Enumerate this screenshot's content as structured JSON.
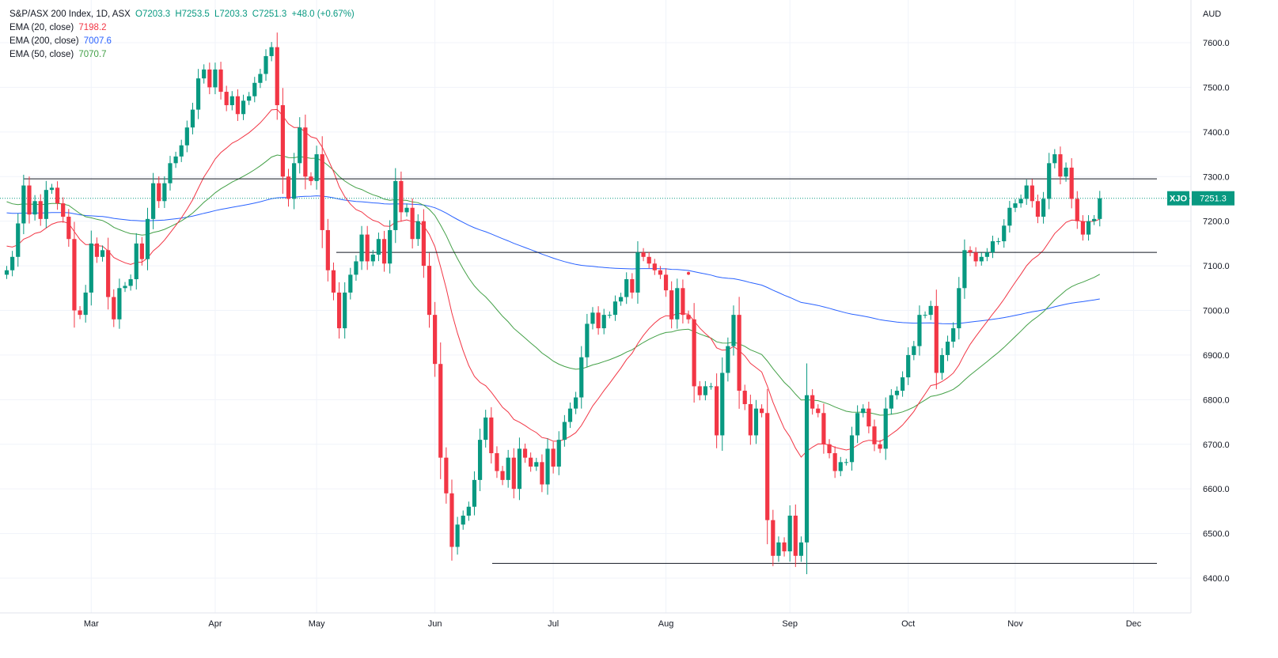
{
  "legend": {
    "symbol": "S&P/ASX 200 Index, 1D, ASX",
    "open": "O7203.3",
    "high": "H7253.5",
    "low": "L7203.3",
    "close": "C7251.3",
    "change": "+48.0 (+0.67%)",
    "ema20_label": "EMA (20, close)",
    "ema20_value": "7198.2",
    "ema200_label": "EMA (200, close)",
    "ema200_value": "7007.6",
    "ema50_label": "EMA (50, close)",
    "ema50_value": "7070.7"
  },
  "colors": {
    "up": "#089981",
    "down": "#f23645",
    "ema20": "#f23645",
    "ema200": "#2962ff",
    "ema50": "#43a047",
    "grid": "#f0f3fa",
    "text": "#131722",
    "price_tag": "#089981"
  },
  "chart_data": {
    "type": "candlestick",
    "currency_label": "AUD",
    "ylim": [
      6360,
      7660
    ],
    "y_ticks": [
      "7600.0",
      "7500.0",
      "7400.0",
      "7300.0",
      "7200.0",
      "7100.0",
      "7000.0",
      "6900.0",
      "6800.0",
      "6700.0",
      "6600.0",
      "6500.0",
      "6400.0"
    ],
    "y_tick_values": [
      7600,
      7500,
      7400,
      7300,
      7200,
      7100,
      7000,
      6900,
      6800,
      6700,
      6600,
      6500,
      6400
    ],
    "x_ticks": [
      {
        "label": "Mar",
        "bar": 15
      },
      {
        "label": "Apr",
        "bar": 37
      },
      {
        "label": "May",
        "bar": 55
      },
      {
        "label": "Jun",
        "bar": 76
      },
      {
        "label": "Jul",
        "bar": 97
      },
      {
        "label": "Aug",
        "bar": 117
      },
      {
        "label": "Sep",
        "bar": 139
      },
      {
        "label": "Oct",
        "bar": 160
      },
      {
        "label": "Nov",
        "bar": 179
      },
      {
        "label": "Dec",
        "bar": 200
      }
    ],
    "closes": [
      7090,
      7120,
      7195,
      7280,
      7215,
      7245,
      7205,
      7270,
      7275,
      7240,
      7210,
      7160,
      7000,
      6990,
      7040,
      7150,
      7120,
      7135,
      7030,
      6980,
      7050,
      7055,
      7070,
      7150,
      7115,
      7205,
      7285,
      7245,
      7285,
      7330,
      7345,
      7370,
      7410,
      7450,
      7520,
      7540,
      7500,
      7540,
      7490,
      7460,
      7480,
      7440,
      7470,
      7480,
      7510,
      7530,
      7570,
      7590,
      7460,
      7300,
      7250,
      7330,
      7410,
      7300,
      7290,
      7350,
      7180,
      7090,
      7040,
      6960,
      7040,
      7080,
      7110,
      7170,
      7110,
      7125,
      7160,
      7105,
      7180,
      7290,
      7220,
      7230,
      7160,
      7200,
      7100,
      6990,
      6880,
      6670,
      6590,
      6470,
      6520,
      6540,
      6560,
      6620,
      6710,
      6760,
      6680,
      6640,
      6620,
      6670,
      6600,
      6690,
      6670,
      6650,
      6660,
      6610,
      6690,
      6650,
      6710,
      6750,
      6780,
      6805,
      6895,
      6970,
      6995,
      6960,
      6990,
      6990,
      7020,
      7030,
      7070,
      7040,
      7130,
      7120,
      7105,
      7090,
      7080,
      7045,
      6980,
      7050,
      6990,
      6980,
      6830,
      6810,
      6830,
      6830,
      6720,
      6860,
      6920,
      6990,
      6820,
      6790,
      6720,
      6780,
      6770,
      6530,
      6450,
      6480,
      6460,
      6540,
      6450,
      6480,
      6810,
      6780,
      6770,
      6700,
      6680,
      6640,
      6660,
      6660,
      6720,
      6770,
      6780,
      6740,
      6700,
      6690,
      6780,
      6810,
      6820,
      6850,
      6900,
      6920,
      6990,
      6990,
      7010,
      6860,
      6900,
      6930,
      6960,
      7050,
      7135,
      7130,
      7110,
      7120,
      7130,
      7155,
      7155,
      7190,
      7230,
      7240,
      7250,
      7280,
      7245,
      7210,
      7250,
      7330,
      7350,
      7300,
      7320,
      7250,
      7200,
      7170,
      7200,
      7205,
      7251.3
    ],
    "ema20_last": 7198.2,
    "ema50_last": 7070.7,
    "ema200_last": 7007.6,
    "horizontal_lines": [
      7295,
      7130,
      6433
    ],
    "last_price": 7251.3,
    "price_tag_symbol": "XJO",
    "price_tag_value": "7251.3",
    "marker": {
      "bar": 121,
      "price": 7083
    }
  }
}
